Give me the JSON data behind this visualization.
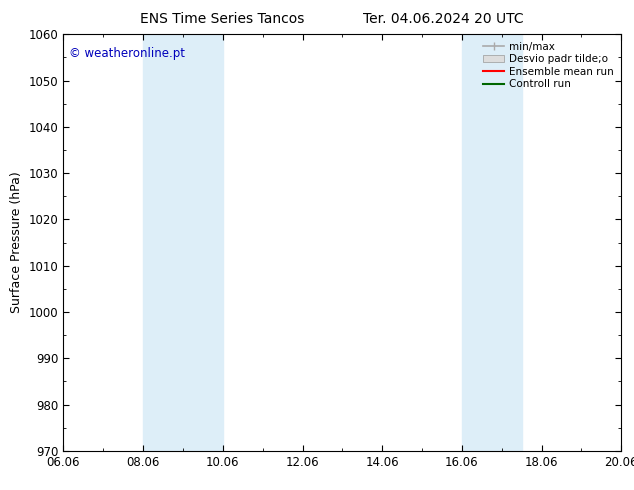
{
  "title": "ENS Time Series Tancos",
  "title2": "Ter. 04.06.2024 20 UTC",
  "ylabel": "Surface Pressure (hPa)",
  "ylim": [
    970,
    1060
  ],
  "yticks": [
    970,
    980,
    990,
    1000,
    1010,
    1020,
    1030,
    1040,
    1050,
    1060
  ],
  "xlim_start": 0,
  "xlim_end": 14,
  "xtick_labels": [
    "06.06",
    "08.06",
    "10.06",
    "12.06",
    "14.06",
    "16.06",
    "18.06",
    "20.06"
  ],
  "xtick_positions": [
    0,
    2,
    4,
    6,
    8,
    10,
    12,
    14
  ],
  "shaded_bands": [
    {
      "x_start": 2,
      "x_end": 4
    },
    {
      "x_start": 10,
      "x_end": 11.5
    }
  ],
  "shade_color": "#ddeef8",
  "background_color": "#ffffff",
  "copyright_text": "© weatheronline.pt",
  "copyright_color": "#0000bb",
  "legend_items": [
    {
      "label": "min/max",
      "color": "#aaaaaa",
      "type": "hline"
    },
    {
      "label": "Desvio padr tilde;o",
      "color": "#dddddd",
      "type": "box"
    },
    {
      "label": "Ensemble mean run",
      "color": "#ff0000",
      "type": "line"
    },
    {
      "label": "Controll run",
      "color": "#006600",
      "type": "line"
    }
  ],
  "tick_color": "#000000",
  "title_fontsize": 10,
  "axis_label_fontsize": 9,
  "tick_fontsize": 8.5,
  "copyright_fontsize": 8.5,
  "legend_fontsize": 7.5
}
